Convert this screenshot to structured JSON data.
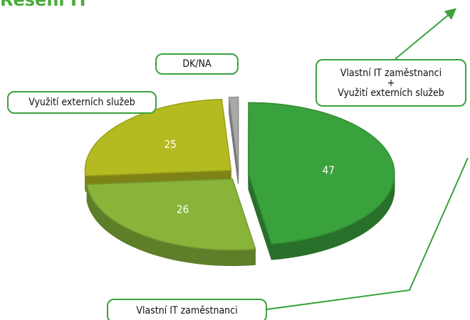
{
  "chart_data": {
    "type": "pie3d",
    "title": "Řešení IT",
    "categories": [
      "Vlastní IT zaměstnanci\n+\nVyužití externích služeb",
      "Vlastní IT zaměstnanci",
      "Využití externích služeb",
      "DK/NA"
    ],
    "values": [
      47,
      26,
      25,
      1
    ],
    "colors": [
      "#3aa23c",
      "#88b43a",
      "#b4bb20",
      "#a9a9a9"
    ]
  }
}
